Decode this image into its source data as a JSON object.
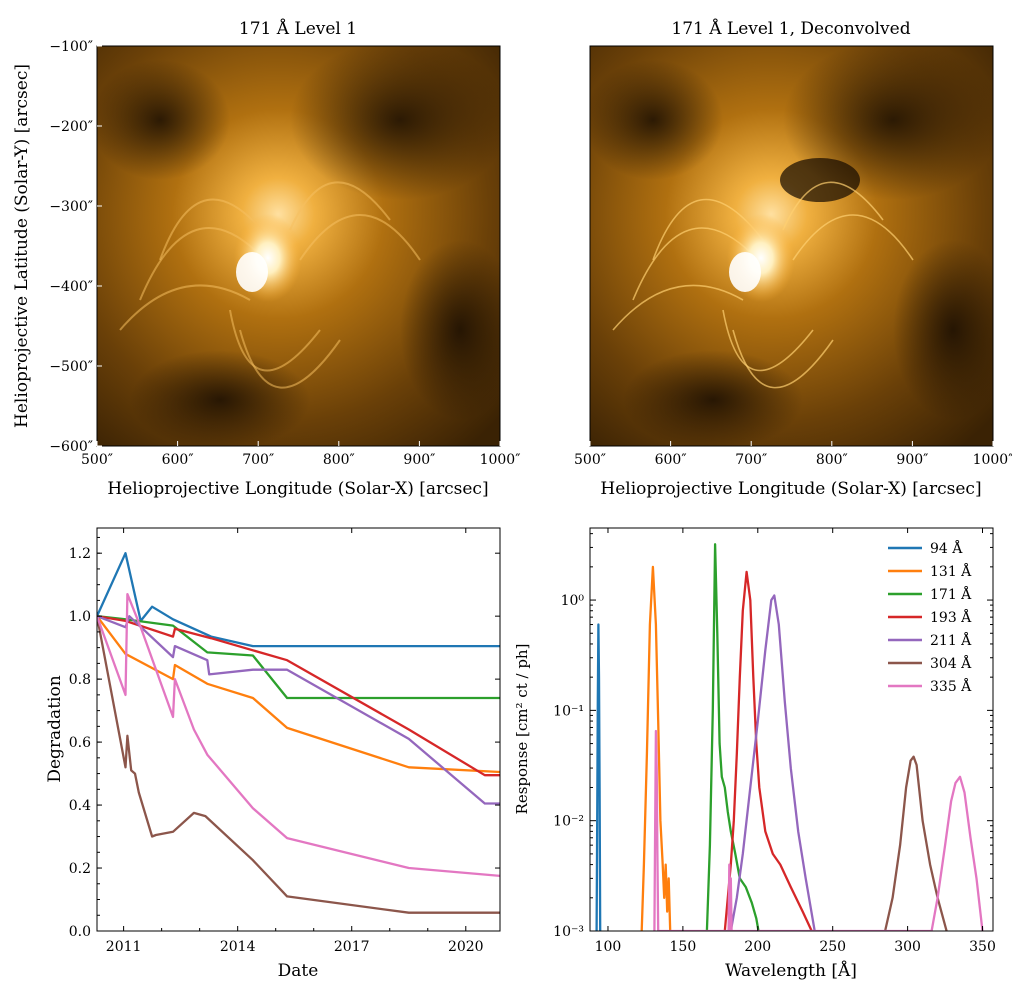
{
  "figure": {
    "panels": [
      {
        "id": "aia-171",
        "title": "171 Å Level 1",
        "xlabel": "Helioprojective Longitude (Solar-X) [arcsec]",
        "ylabel": "Helioprojective Latitude (Solar-Y) [arcsec]",
        "xticks": [
          "500″",
          "600″",
          "700″",
          "800″",
          "900″",
          "1000″"
        ],
        "yticks": [
          "−100″",
          "−200″",
          "−300″",
          "−400″",
          "−500″",
          "−600″"
        ]
      },
      {
        "id": "aia-171-deconvolved",
        "title": "171 Å Level 1, Deconvolved",
        "xlabel": "Helioprojective Longitude (Solar-X) [arcsec]",
        "ylabel": "",
        "xticks": [
          "500″",
          "600″",
          "700″",
          "800″",
          "900″",
          "1000″"
        ],
        "yticks": []
      }
    ]
  },
  "chart_data": [
    {
      "type": "image",
      "title": "171 Å Level 1",
      "xlabel": "Helioprojective Longitude (Solar-X) [arcsec]",
      "ylabel": "Helioprojective Latitude (Solar-Y) [arcsec]",
      "xlim": [
        500,
        1000
      ],
      "ylim": [
        -600,
        -100
      ],
      "colormap": "sdoaia171"
    },
    {
      "type": "image",
      "title": "171 Å Level 1, Deconvolved",
      "xlabel": "Helioprojective Longitude (Solar-X) [arcsec]",
      "ylabel": "",
      "xlim": [
        500,
        1000
      ],
      "ylim": [
        -600,
        -100
      ],
      "colormap": "sdoaia171"
    },
    {
      "type": "line",
      "title": "",
      "xlabel": "Date",
      "ylabel": "Degradation",
      "xlim": [
        2010.3,
        2020.9
      ],
      "ylim": [
        0.0,
        1.28
      ],
      "xticks": [
        2011,
        2014,
        2017,
        2020
      ],
      "xtick_labels": [
        "2011",
        "2014",
        "2017",
        "2020"
      ],
      "yticks": [
        0.0,
        0.2,
        0.4,
        0.6,
        0.8,
        1.0,
        1.2
      ],
      "ytick_labels": [
        "0.0",
        "0.2",
        "0.4",
        "0.6",
        "0.8",
        "1.0",
        "1.2"
      ],
      "series": [
        {
          "color": "#1f77b4",
          "points": [
            [
              2010.3,
              1.0
            ],
            [
              2011.05,
              1.2
            ],
            [
              2011.45,
              0.985
            ],
            [
              2011.75,
              1.03
            ],
            [
              2012.3,
              0.99
            ],
            [
              2013.3,
              0.935
            ],
            [
              2014.4,
              0.905
            ],
            [
              2020.9,
              0.905
            ]
          ]
        },
        {
          "color": "#ff7f0e",
          "points": [
            [
              2010.3,
              1.0
            ],
            [
              2011.05,
              0.88
            ],
            [
              2012.3,
              0.8
            ],
            [
              2012.35,
              0.845
            ],
            [
              2013.2,
              0.785
            ],
            [
              2014.4,
              0.74
            ],
            [
              2015.3,
              0.645
            ],
            [
              2018.5,
              0.52
            ],
            [
              2020.9,
              0.505
            ]
          ]
        },
        {
          "color": "#2ca02c",
          "points": [
            [
              2010.3,
              1.0
            ],
            [
              2011.05,
              0.99
            ],
            [
              2012.3,
              0.97
            ],
            [
              2013.2,
              0.885
            ],
            [
              2014.4,
              0.875
            ],
            [
              2015.3,
              0.74
            ],
            [
              2020.9,
              0.74
            ]
          ]
        },
        {
          "color": "#d62728",
          "points": [
            [
              2010.3,
              1.0
            ],
            [
              2011.05,
              0.985
            ],
            [
              2012.3,
              0.935
            ],
            [
              2012.35,
              0.96
            ],
            [
              2013.3,
              0.93
            ],
            [
              2015.3,
              0.86
            ],
            [
              2018.5,
              0.64
            ],
            [
              2020.5,
              0.495
            ],
            [
              2020.9,
              0.495
            ]
          ]
        },
        {
          "color": "#9467bd",
          "points": [
            [
              2010.3,
              1.0
            ],
            [
              2011.05,
              0.965
            ],
            [
              2011.15,
              1.0
            ],
            [
              2012.3,
              0.87
            ],
            [
              2012.35,
              0.905
            ],
            [
              2013.2,
              0.86
            ],
            [
              2013.25,
              0.815
            ],
            [
              2014.4,
              0.83
            ],
            [
              2015.3,
              0.83
            ],
            [
              2018.5,
              0.61
            ],
            [
              2020.5,
              0.405
            ],
            [
              2020.9,
              0.405
            ]
          ]
        },
        {
          "color": "#8c564b",
          "points": [
            [
              2010.3,
              1.0
            ],
            [
              2011.05,
              0.52
            ],
            [
              2011.1,
              0.62
            ],
            [
              2011.2,
              0.51
            ],
            [
              2011.3,
              0.5
            ],
            [
              2011.4,
              0.44
            ],
            [
              2011.75,
              0.3
            ],
            [
              2011.85,
              0.305
            ],
            [
              2012.3,
              0.315
            ],
            [
              2012.85,
              0.375
            ],
            [
              2013.15,
              0.365
            ],
            [
              2014.4,
              0.225
            ],
            [
              2015.3,
              0.11
            ],
            [
              2018.5,
              0.058
            ],
            [
              2020.9,
              0.058
            ]
          ]
        },
        {
          "color": "#e377c2",
          "points": [
            [
              2010.3,
              1.0
            ],
            [
              2011.05,
              0.75
            ],
            [
              2011.1,
              1.07
            ],
            [
              2011.45,
              0.965
            ],
            [
              2012.3,
              0.68
            ],
            [
              2012.35,
              0.8
            ],
            [
              2012.85,
              0.64
            ],
            [
              2013.2,
              0.56
            ],
            [
              2014.4,
              0.39
            ],
            [
              2015.3,
              0.295
            ],
            [
              2018.5,
              0.2
            ],
            [
              2020.9,
              0.175
            ]
          ]
        }
      ]
    },
    {
      "type": "line",
      "title": "",
      "xlabel": "Wavelength [Å]",
      "ylabel": "Response [cm² ct / ph]",
      "xlim": [
        88,
        357
      ],
      "ylim": [
        0.001,
        4.5
      ],
      "yscale": "log",
      "xticks": [
        100,
        150,
        200,
        250,
        300,
        350
      ],
      "xtick_labels": [
        "100",
        "150",
        "200",
        "250",
        "300",
        "350"
      ],
      "yticks": [
        0.001,
        0.01,
        0.1,
        1
      ],
      "ytick_labels": [
        "10⁻³",
        "10⁻²",
        "10⁻¹",
        "10⁰"
      ],
      "legend_position": "top-right",
      "series": [
        {
          "name": "94 Å",
          "color": "#1f77b4",
          "points": [
            [
              92.4,
              0.001
            ],
            [
              92.8,
              0.01
            ],
            [
              93.2,
              0.12
            ],
            [
              93.6,
              0.6
            ],
            [
              94.0,
              0.2
            ],
            [
              94.4,
              0.02
            ],
            [
              94.8,
              0.001
            ]
          ]
        },
        {
          "name": "131 Å",
          "color": "#ff7f0e",
          "points": [
            [
              122.5,
              0.001
            ],
            [
              124,
              0.004
            ],
            [
              126,
              0.04
            ],
            [
              128,
              0.6
            ],
            [
              130,
              2.0
            ],
            [
              132,
              0.6
            ],
            [
              133.5,
              0.08
            ],
            [
              135,
              0.01
            ],
            [
              136.5,
              0.004
            ],
            [
              137.5,
              0.002
            ],
            [
              138.5,
              0.004
            ],
            [
              139.5,
              0.0015
            ],
            [
              140.5,
              0.003
            ],
            [
              141.5,
              0.001
            ]
          ]
        },
        {
          "name": "171 Å",
          "color": "#2ca02c",
          "points": [
            [
              166,
              0.001
            ],
            [
              168,
              0.006
            ],
            [
              170,
              0.1
            ],
            [
              171.5,
              3.2
            ],
            [
              173,
              0.5
            ],
            [
              174.5,
              0.05
            ],
            [
              176,
              0.025
            ],
            [
              178,
              0.02
            ],
            [
              180,
              0.012
            ],
            [
              182,
              0.008
            ],
            [
              185,
              0.005
            ],
            [
              188,
              0.003
            ],
            [
              192,
              0.0025
            ],
            [
              196,
              0.0018
            ],
            [
              199,
              0.0013
            ],
            [
              200.5,
              0.001
            ]
          ]
        },
        {
          "name": "193 Å",
          "color": "#d62728",
          "points": [
            [
              178,
              0.001
            ],
            [
              180,
              0.002
            ],
            [
              182,
              0.004
            ],
            [
              184,
              0.01
            ],
            [
              186,
              0.04
            ],
            [
              188,
              0.2
            ],
            [
              190,
              0.8
            ],
            [
              192.5,
              1.8
            ],
            [
              195,
              1.0
            ],
            [
              197,
              0.2
            ],
            [
              199,
              0.05
            ],
            [
              201,
              0.02
            ],
            [
              205,
              0.008
            ],
            [
              210,
              0.005
            ],
            [
              215,
              0.004
            ],
            [
              222,
              0.0025
            ],
            [
              230,
              0.0015
            ],
            [
              236,
              0.001
            ]
          ]
        },
        {
          "name": "211 Å",
          "color": "#9467bd",
          "points": [
            [
              182,
              0.001
            ],
            [
              186,
              0.002
            ],
            [
              190,
              0.005
            ],
            [
              195,
              0.02
            ],
            [
              200,
              0.08
            ],
            [
              205,
              0.35
            ],
            [
              209,
              1.0
            ],
            [
              211,
              1.1
            ],
            [
              214,
              0.6
            ],
            [
              218,
              0.12
            ],
            [
              222,
              0.03
            ],
            [
              227,
              0.008
            ],
            [
              232,
              0.003
            ],
            [
              238,
              0.001
            ]
          ]
        },
        {
          "name": "304 Å",
          "color": "#8c564b",
          "points": [
            [
              285,
              0.001
            ],
            [
              290,
              0.002
            ],
            [
              295,
              0.006
            ],
            [
              299,
              0.02
            ],
            [
              302,
              0.035
            ],
            [
              304,
              0.038
            ],
            [
              306,
              0.032
            ],
            [
              310,
              0.01
            ],
            [
              315,
              0.004
            ],
            [
              320,
              0.002
            ],
            [
              326,
              0.001
            ]
          ]
        },
        {
          "name": "335 Å",
          "color": "#e377c2",
          "points": [
            [
              131,
              0.001
            ],
            [
              131.5,
              0.01
            ],
            [
              132,
              0.065
            ],
            [
              132.5,
              0.03
            ],
            [
              133,
              0.005
            ],
            [
              133.5,
              0.001
            ],
            [
              180.5,
              0.001
            ],
            [
              181,
              0.004
            ],
            [
              181.5,
              0.001
            ],
            [
              182,
              0.003
            ],
            [
              182.5,
              0.001
            ],
            [
              316,
              0.001
            ],
            [
              320,
              0.002
            ],
            [
              325,
              0.006
            ],
            [
              329,
              0.015
            ],
            [
              332,
              0.022
            ],
            [
              335,
              0.025
            ],
            [
              338,
              0.018
            ],
            [
              342,
              0.007
            ],
            [
              346,
              0.003
            ],
            [
              350,
              0.001
            ]
          ]
        }
      ]
    }
  ]
}
